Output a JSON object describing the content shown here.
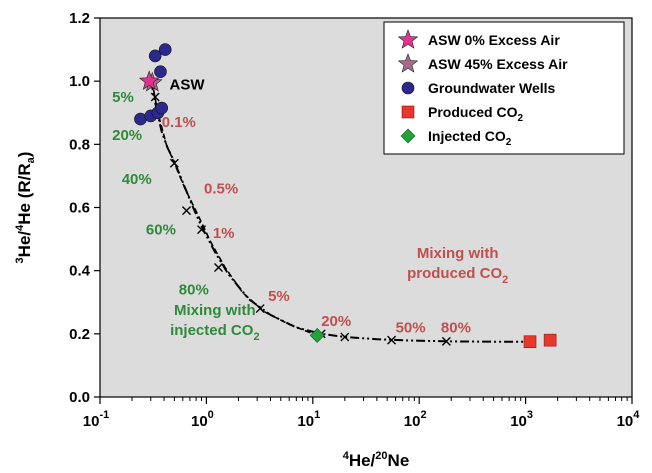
{
  "chart_data": {
    "type": "scatter",
    "x_scale": "log",
    "xlim": [
      0.1,
      10000
    ],
    "ylim": [
      0.0,
      1.2
    ],
    "grid": false,
    "legend_position": "top-right",
    "xlabel": {
      "base": "He/",
      "sup1": "4",
      "sup2": "20",
      "rest": "Ne"
    },
    "ylabel": {
      "sup1": "3",
      "a": "He/",
      "sup2": "4",
      "b": "He (R/R",
      "sub": "a",
      "c": ")"
    },
    "x_ticks": [
      {
        "value": 0.1,
        "base": "10",
        "exp": "-1"
      },
      {
        "value": 1,
        "base": "10",
        "exp": "0"
      },
      {
        "value": 10,
        "base": "10",
        "exp": "1"
      },
      {
        "value": 100,
        "base": "10",
        "exp": "2"
      },
      {
        "value": 1000,
        "base": "10",
        "exp": "3"
      },
      {
        "value": 10000,
        "base": "10",
        "exp": "4"
      }
    ],
    "y_ticks": [
      {
        "value": 0.0,
        "label": "0.0"
      },
      {
        "value": 0.2,
        "label": "0.2"
      },
      {
        "value": 0.4,
        "label": "0.4"
      },
      {
        "value": 0.6,
        "label": "0.6"
      },
      {
        "value": 0.8,
        "label": "0.8"
      },
      {
        "value": 1.0,
        "label": "1.0"
      },
      {
        "value": 1.2,
        "label": "1.2"
      }
    ],
    "colors": {
      "asw0": "#e0338f",
      "asw45": "#a56b8c",
      "wells": "#2b2a8c",
      "produced": "#e8372c",
      "injected": "#1fa33a",
      "green_text": "#2e8b3a",
      "red_text": "#c0504d",
      "background": "#dcdcdc"
    },
    "legend": [
      {
        "key": "asw0",
        "marker": "star",
        "label": "ASW 0% Excess Air",
        "sub": ""
      },
      {
        "key": "asw45",
        "marker": "star",
        "label": "ASW 45% Excess Air",
        "sub": ""
      },
      {
        "key": "wells",
        "marker": "circle",
        "label": "Groundwater Wells",
        "sub": ""
      },
      {
        "key": "produced",
        "marker": "square",
        "label": "Produced CO",
        "sub": "2"
      },
      {
        "key": "injected",
        "marker": "diamond",
        "label": "Injected CO",
        "sub": "2"
      }
    ],
    "series": {
      "asw0": [
        [
          0.29,
          1.0
        ]
      ],
      "asw45": [
        [
          0.31,
          0.995
        ]
      ],
      "wells": [
        [
          0.33,
          1.08
        ],
        [
          0.37,
          1.03
        ],
        [
          0.41,
          1.1
        ],
        [
          0.24,
          0.88
        ],
        [
          0.3,
          0.89
        ],
        [
          0.35,
          0.9
        ],
        [
          0.38,
          0.915
        ]
      ],
      "produced": [
        [
          1100,
          0.175
        ],
        [
          1700,
          0.18
        ]
      ],
      "injected": [
        [
          11,
          0.195
        ]
      ]
    },
    "mixing_curve_produced": [
      [
        0.3,
        1.0
      ],
      [
        0.32,
        0.96
      ],
      [
        0.34,
        0.91
      ],
      [
        0.38,
        0.84
      ],
      [
        0.43,
        0.79
      ],
      [
        0.5,
        0.745
      ],
      [
        0.6,
        0.68
      ],
      [
        0.75,
        0.6
      ],
      [
        0.9,
        0.54
      ],
      [
        1.2,
        0.46
      ],
      [
        1.6,
        0.39
      ],
      [
        2.5,
        0.31
      ],
      [
        4,
        0.26
      ],
      [
        7,
        0.22
      ],
      [
        12,
        0.2
      ],
      [
        20,
        0.19
      ],
      [
        40,
        0.183
      ],
      [
        80,
        0.179
      ],
      [
        200,
        0.176
      ],
      [
        500,
        0.175
      ],
      [
        1000,
        0.175
      ]
    ],
    "mixing_curve_injected": [
      [
        0.3,
        1.0
      ],
      [
        0.32,
        0.97
      ],
      [
        0.35,
        0.9
      ],
      [
        0.42,
        0.8
      ],
      [
        0.5,
        0.74
      ],
      [
        0.63,
        0.66
      ],
      [
        0.85,
        0.57
      ],
      [
        1.1,
        0.49
      ],
      [
        1.5,
        0.41
      ],
      [
        2.2,
        0.33
      ],
      [
        3.5,
        0.27
      ],
      [
        6,
        0.23
      ],
      [
        11,
        0.195
      ]
    ],
    "curve_ticks": [
      [
        0.3,
        0.995
      ],
      [
        0.33,
        0.95
      ],
      [
        0.5,
        0.74
      ],
      [
        0.65,
        0.59
      ],
      [
        0.9,
        0.53
      ],
      [
        1.3,
        0.41
      ],
      [
        3.2,
        0.28
      ],
      [
        12,
        0.2
      ],
      [
        20,
        0.19
      ],
      [
        55,
        0.18
      ],
      [
        180,
        0.176
      ]
    ],
    "annotations": [
      {
        "text": "ASW",
        "x": 0.45,
        "y": 0.99,
        "color": "black"
      },
      {
        "text": "5%",
        "x": 0.13,
        "y": 0.95,
        "color": "green"
      },
      {
        "text": "20%",
        "x": 0.13,
        "y": 0.83,
        "color": "green"
      },
      {
        "text": "40%",
        "x": 0.16,
        "y": 0.69,
        "color": "green"
      },
      {
        "text": "60%",
        "x": 0.27,
        "y": 0.53,
        "color": "green"
      },
      {
        "text": "80%",
        "x": 0.55,
        "y": 0.34,
        "color": "green"
      },
      {
        "text": "0.1%",
        "x": 0.38,
        "y": 0.87,
        "color": "red"
      },
      {
        "text": "0.5%",
        "x": 0.95,
        "y": 0.66,
        "color": "red"
      },
      {
        "text": "1%",
        "x": 1.15,
        "y": 0.52,
        "color": "red"
      },
      {
        "text": "5%",
        "x": 3.8,
        "y": 0.32,
        "color": "red"
      },
      {
        "text": "20%",
        "x": 12,
        "y": 0.24,
        "color": "red"
      },
      {
        "text": "50%",
        "x": 60,
        "y": 0.22,
        "color": "red"
      },
      {
        "text": "80%",
        "x": 160,
        "y": 0.22,
        "color": "red"
      }
    ],
    "label_blocks": [
      {
        "x": 1.2,
        "y": 0.26,
        "color": "green",
        "lines": [
          {
            "text": "Mixing with",
            "sub": ""
          },
          {
            "text": "injected CO",
            "sub": "2"
          }
        ]
      },
      {
        "x": 230,
        "y": 0.44,
        "color": "red",
        "lines": [
          {
            "text": "Mixing with",
            "sub": ""
          },
          {
            "text": "produced CO",
            "sub": "2"
          }
        ]
      }
    ]
  }
}
